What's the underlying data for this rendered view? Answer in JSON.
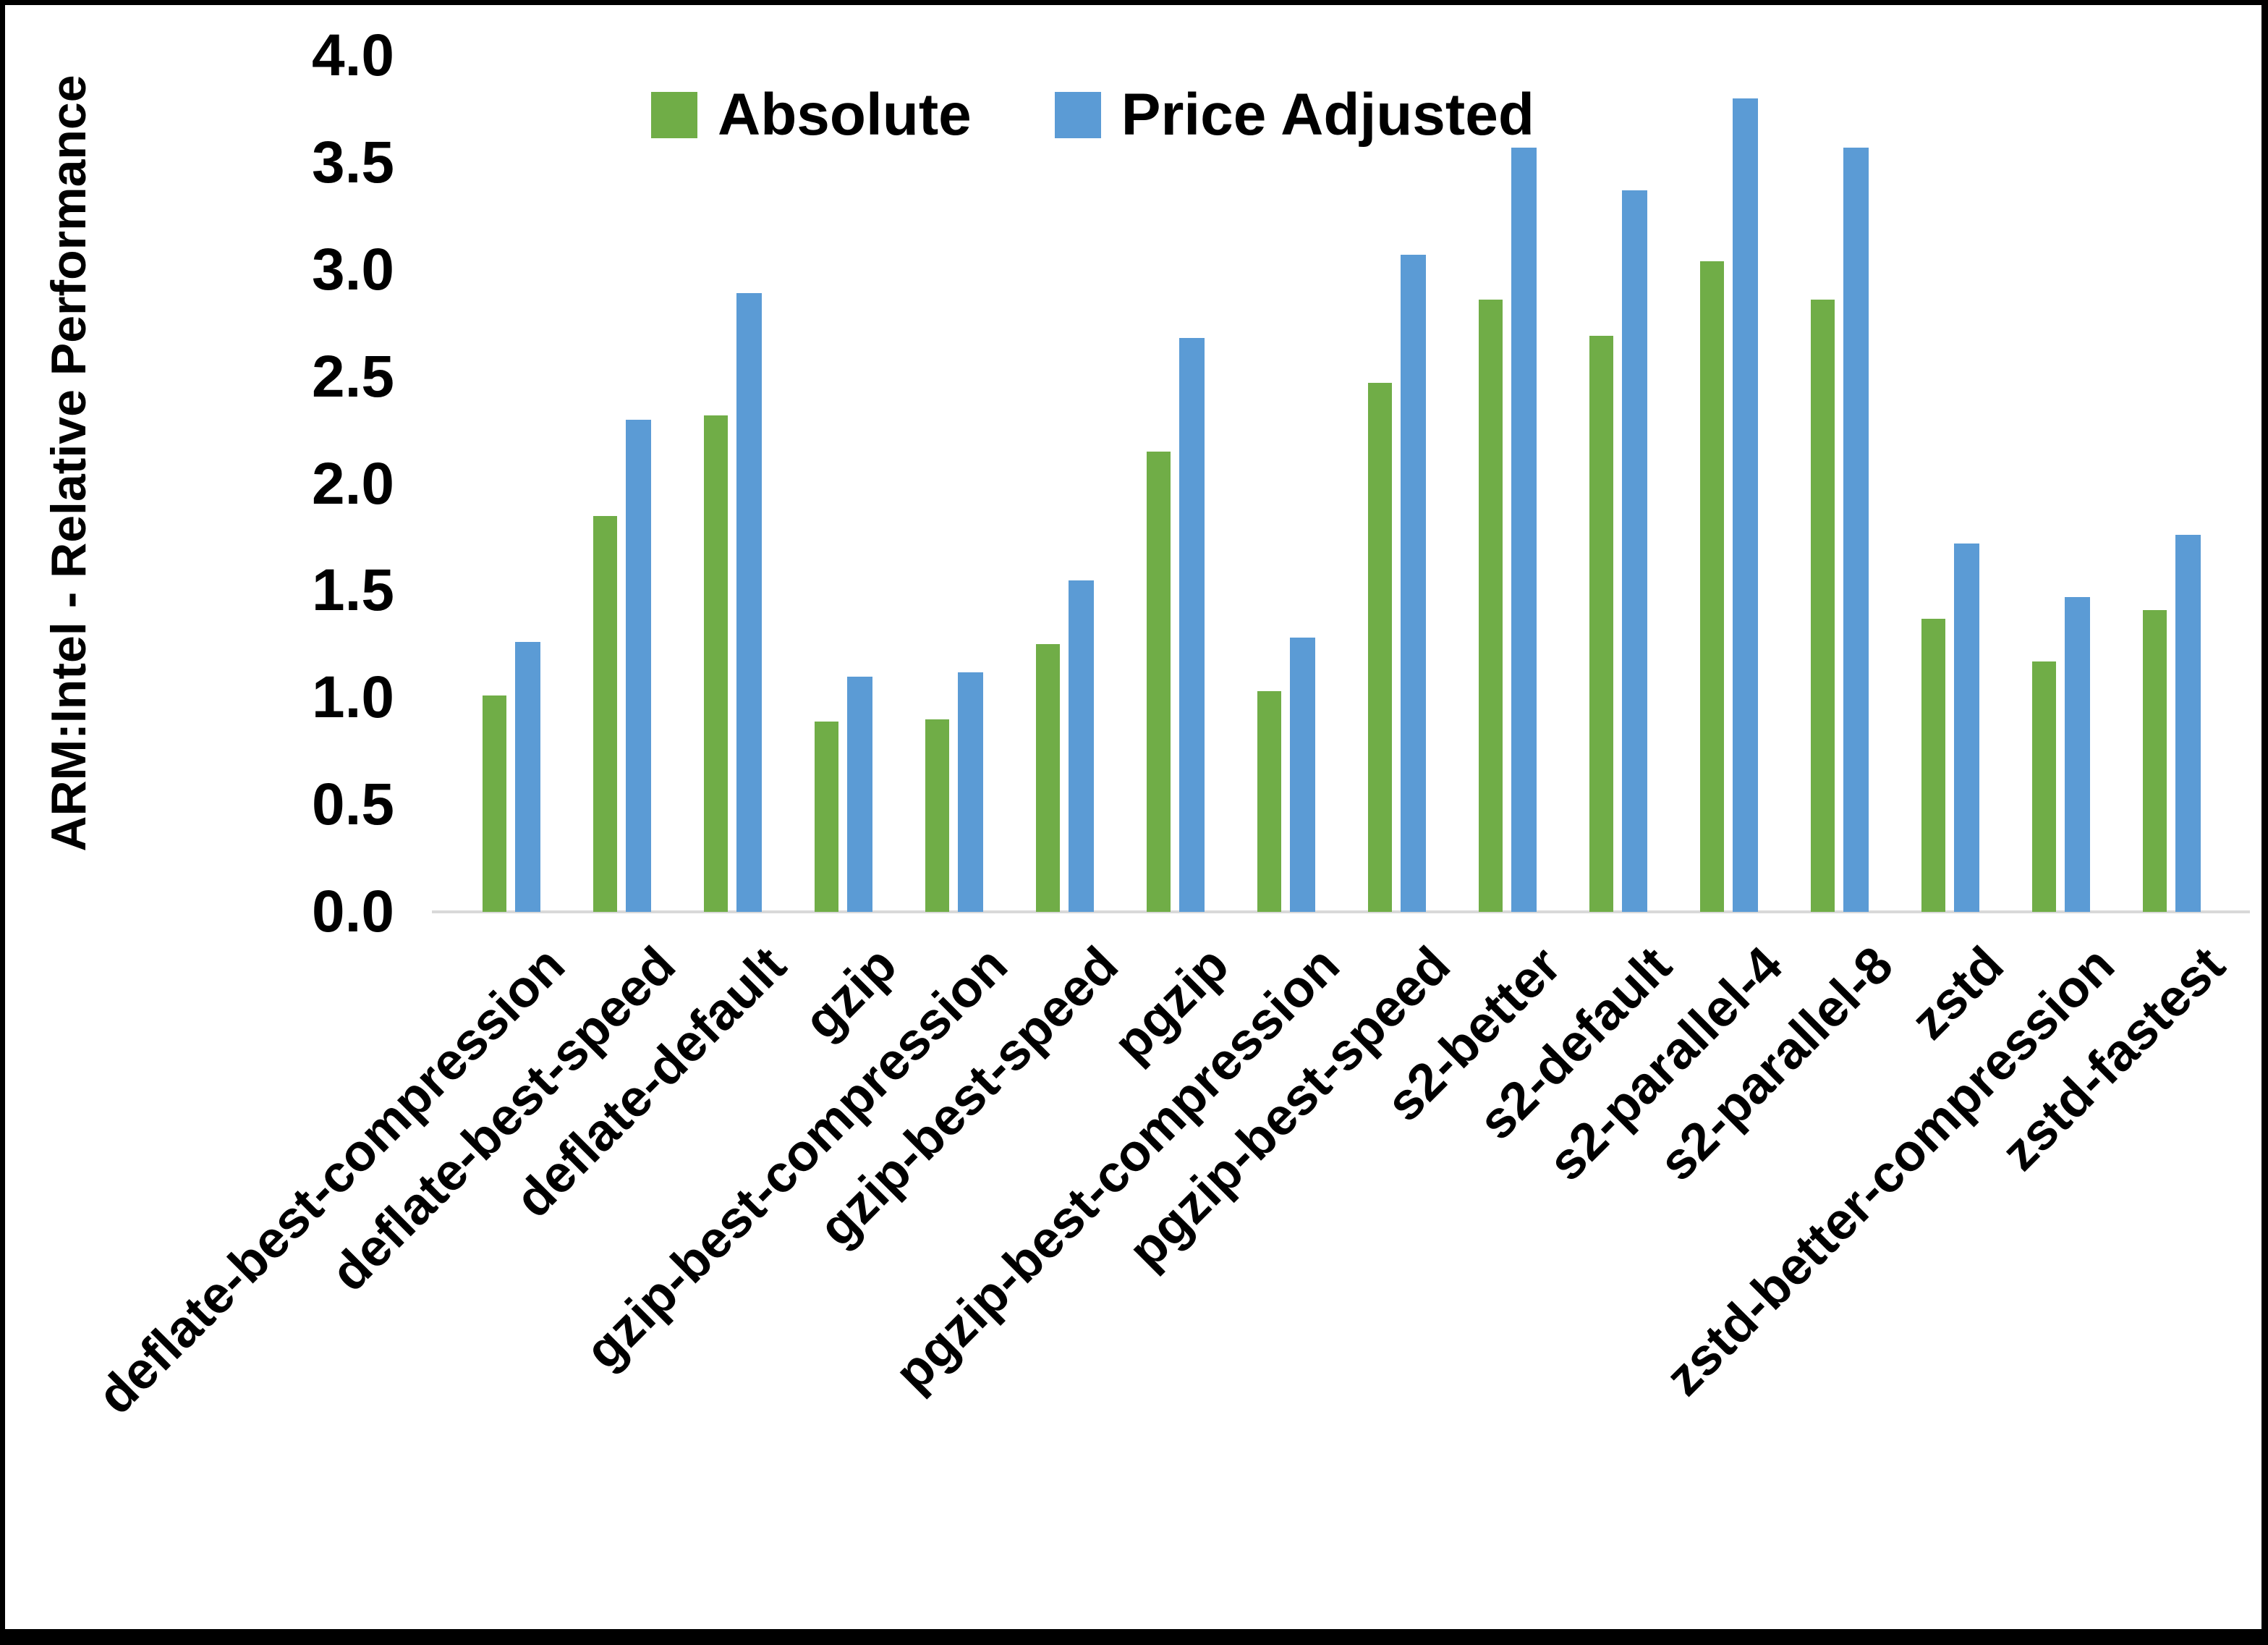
{
  "colors": {
    "absolute": "#70AD47",
    "price_adjusted": "#5B9BD5",
    "axis_line": "#D9D9D9",
    "text": "#000000",
    "frame": "#000000",
    "background": "#FFFFFF"
  },
  "y_axis": {
    "title": "ARM:Intel - Relative Performance",
    "tick_labels": [
      "4.0",
      "3.5",
      "3.0",
      "2.5",
      "2.0",
      "1.5",
      "1.0",
      "0.5",
      "0.0"
    ],
    "tick_values": [
      4.0,
      3.5,
      3.0,
      2.5,
      2.0,
      1.5,
      1.0,
      0.5,
      0.0
    ]
  },
  "legend": {
    "items": [
      {
        "label": "Absolute",
        "color": "#70AD47"
      },
      {
        "label": "Price Adjusted",
        "color": "#5B9BD5"
      }
    ]
  },
  "chart_data": {
    "type": "bar",
    "title": "",
    "xlabel": "",
    "ylabel": "ARM:Intel - Relative Performance",
    "ylim": [
      0.0,
      4.0
    ],
    "ytick_step": 0.5,
    "grid": false,
    "legend_position": "top-center",
    "categories": [
      "deflate-best-compression",
      "deflate-best-speed",
      "deflate-default",
      "gzip",
      "gzip-best-compression",
      "gzip-best-speed",
      "pgzip",
      "pgzip-best-compression",
      "pgzip-best-speed",
      "s2-better",
      "s2-default",
      "s2-parallel-4",
      "s2-parallel-8",
      "zstd",
      "zstd-better-compression",
      "zstd-fastest"
    ],
    "series": [
      {
        "name": "Absolute",
        "color": "#70AD47",
        "values": [
          1.01,
          1.85,
          2.32,
          0.89,
          0.9,
          1.25,
          2.15,
          1.03,
          2.47,
          2.86,
          2.69,
          3.04,
          2.86,
          1.37,
          1.17,
          1.41
        ]
      },
      {
        "name": "Price Adjusted",
        "color": "#5B9BD5",
        "values": [
          1.26,
          2.3,
          2.89,
          1.1,
          1.12,
          1.55,
          2.68,
          1.28,
          3.07,
          3.57,
          3.37,
          3.8,
          3.57,
          1.72,
          1.47,
          1.76
        ]
      }
    ]
  }
}
